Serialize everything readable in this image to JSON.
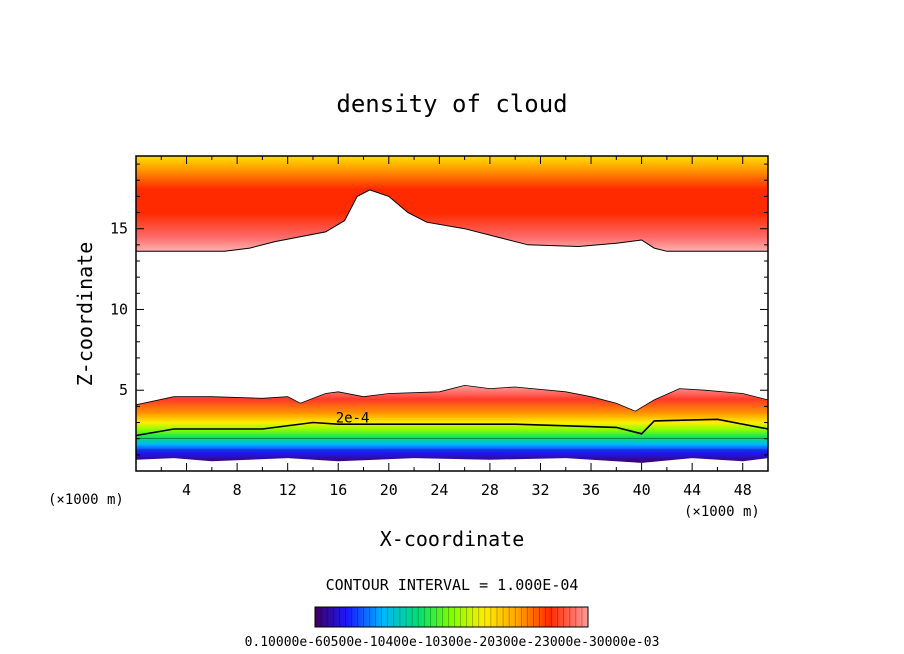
{
  "chart_data": {
    "type": "heatmap",
    "title": "density of cloud",
    "xlabel": "X-coordinate",
    "ylabel": "Z-coordinate",
    "x_unit": "(×1000 m)",
    "x_unit_right": "(×1000 m)",
    "xlim": [
      0,
      50
    ],
    "ylim": [
      0,
      19.5
    ],
    "x_ticks": [
      "4",
      "8",
      "12",
      "16",
      "20",
      "24",
      "28",
      "32",
      "36",
      "40",
      "44",
      "48"
    ],
    "y_ticks": [
      "5",
      "10",
      "15"
    ],
    "x_tick_values": [
      4,
      8,
      12,
      16,
      20,
      24,
      28,
      32,
      36,
      40,
      44,
      48
    ],
    "y_tick_values": [
      5,
      10,
      15
    ],
    "contour_interval_text": "CONTOUR INTERVAL = 1.000E-04",
    "contour_label": "2e-4",
    "colorbar_labels_text": "0.10000e-60500e-10400e-10300e-20300e-23000e-30000e-03",
    "colormap": [
      "#40005f",
      "#1a1aff",
      "#00b7ff",
      "#00e070",
      "#7fff00",
      "#ffee00",
      "#ffa500",
      "#ff2a00",
      "#ff9a9a"
    ],
    "upper_layer": {
      "base_z": [
        [
          0,
          13.6
        ],
        [
          7,
          13.6
        ],
        [
          9,
          13.8
        ],
        [
          11,
          14.2
        ],
        [
          13,
          14.5
        ],
        [
          15,
          14.8
        ],
        [
          16.5,
          15.5
        ],
        [
          17.5,
          17.0
        ],
        [
          18.5,
          17.4
        ],
        [
          20,
          17.0
        ],
        [
          21.5,
          16.0
        ],
        [
          23,
          15.4
        ],
        [
          26,
          15.0
        ],
        [
          29,
          14.4
        ],
        [
          31,
          14.0
        ],
        [
          35,
          13.9
        ],
        [
          38,
          14.1
        ],
        [
          40,
          14.3
        ],
        [
          41,
          13.8
        ],
        [
          42,
          13.6
        ],
        [
          50,
          13.6
        ]
      ],
      "top_z": 19.5
    },
    "lower_layer": {
      "top_z": [
        [
          0,
          4.1
        ],
        [
          3,
          4.6
        ],
        [
          6,
          4.6
        ],
        [
          10,
          4.5
        ],
        [
          12,
          4.6
        ],
        [
          13,
          4.2
        ],
        [
          15,
          4.8
        ],
        [
          16,
          4.9
        ],
        [
          18,
          4.6
        ],
        [
          20,
          4.8
        ],
        [
          24,
          4.9
        ],
        [
          26,
          5.3
        ],
        [
          28,
          5.1
        ],
        [
          30,
          5.2
        ],
        [
          34,
          4.9
        ],
        [
          36,
          4.6
        ],
        [
          38,
          4.2
        ],
        [
          39.5,
          3.7
        ],
        [
          41,
          4.4
        ],
        [
          43,
          5.1
        ],
        [
          45,
          5.0
        ],
        [
          48,
          4.8
        ],
        [
          50,
          4.4
        ]
      ],
      "line_2e4_z": [
        [
          0,
          2.2
        ],
        [
          3,
          2.6
        ],
        [
          10,
          2.6
        ],
        [
          14,
          3.0
        ],
        [
          16,
          2.9
        ],
        [
          22,
          2.9
        ],
        [
          30,
          2.9
        ],
        [
          38,
          2.7
        ],
        [
          40,
          2.3
        ],
        [
          41,
          3.1
        ],
        [
          46,
          3.2
        ],
        [
          50,
          2.6
        ]
      ],
      "green_z": 2.0,
      "blue_z": 1.3,
      "bottom_z": [
        [
          0,
          0.7
        ],
        [
          3,
          0.8
        ],
        [
          6,
          0.6
        ],
        [
          12,
          0.8
        ],
        [
          16,
          0.6
        ],
        [
          22,
          0.8
        ],
        [
          28,
          0.7
        ],
        [
          34,
          0.8
        ],
        [
          40,
          0.5
        ],
        [
          44,
          0.8
        ],
        [
          48,
          0.6
        ],
        [
          50,
          0.8
        ]
      ]
    }
  }
}
